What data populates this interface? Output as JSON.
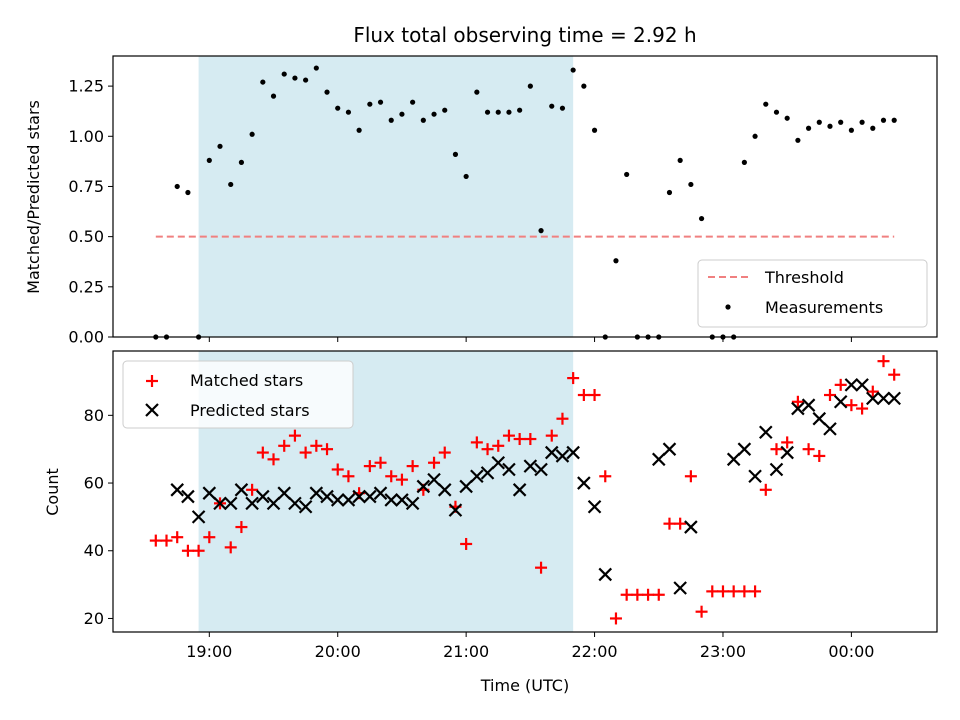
{
  "colors": {
    "threshold": "#f08080",
    "measurement": "#000000",
    "matched": "#ff0000",
    "predicted": "#000000",
    "span": "#add8e6"
  },
  "chart_data": [
    {
      "type": "scatter",
      "title": "Flux total observing time = 2.92 h",
      "xlabel": "",
      "ylabel": "Matched/Predicted stars",
      "ylim": [
        0,
        1.4
      ],
      "yticks": [
        0.0,
        0.25,
        0.5,
        0.75,
        1.0,
        1.25
      ],
      "ytick_labels": [
        "0.00",
        "0.25",
        "0.50",
        "0.75",
        "1.00",
        "1.25"
      ],
      "xlim": [
        "18:15",
        "00:40"
      ],
      "xticks": [
        "19:00",
        "20:00",
        "21:00",
        "22:00",
        "23:00",
        "00:00"
      ],
      "shaded_span": [
        "18:55",
        "21:50"
      ],
      "threshold": {
        "name": "Threshold",
        "value": 0.5,
        "x_start": "18:35",
        "x_end": "00:20"
      },
      "legend": {
        "location": "lower right",
        "entries": [
          "Threshold",
          "Measurements"
        ]
      },
      "series": [
        {
          "name": "Measurements",
          "x": [
            "18:35",
            "18:40",
            "18:45",
            "18:50",
            "18:55",
            "19:00",
            "19:05",
            "19:10",
            "19:15",
            "19:20",
            "19:25",
            "19:30",
            "19:35",
            "19:40",
            "19:45",
            "19:50",
            "19:55",
            "20:00",
            "20:05",
            "20:10",
            "20:15",
            "20:20",
            "20:25",
            "20:30",
            "20:35",
            "20:40",
            "20:45",
            "20:50",
            "20:55",
            "21:00",
            "21:05",
            "21:10",
            "21:15",
            "21:20",
            "21:25",
            "21:30",
            "21:35",
            "21:40",
            "21:45",
            "21:50",
            "21:55",
            "22:00",
            "22:05",
            "22:10",
            "22:15",
            "22:20",
            "22:25",
            "22:30",
            "22:35",
            "22:40",
            "22:45",
            "22:50",
            "22:55",
            "23:00",
            "23:05",
            "23:10",
            "23:15",
            "23:20",
            "23:25",
            "23:30",
            "23:35",
            "23:40",
            "23:45",
            "23:50",
            "23:55",
            "00:00",
            "00:05",
            "00:10",
            "00:15",
            "00:20"
          ],
          "y": [
            0.0,
            0.0,
            0.75,
            0.72,
            0.0,
            0.88,
            0.95,
            0.76,
            0.87,
            1.01,
            1.27,
            1.2,
            1.31,
            1.29,
            1.28,
            1.34,
            1.22,
            1.14,
            1.12,
            1.03,
            1.16,
            1.17,
            1.08,
            1.11,
            1.17,
            1.08,
            1.11,
            1.13,
            0.91,
            0.8,
            1.22,
            1.12,
            1.12,
            1.12,
            1.13,
            1.25,
            0.53,
            1.15,
            1.14,
            1.33,
            1.25,
            1.03,
            0.0,
            0.38,
            0.81,
            0.0,
            0.0,
            0.0,
            0.72,
            0.88,
            0.76,
            0.59,
            0.0,
            0.0,
            0.0,
            0.87,
            1.0,
            1.16,
            1.12,
            1.09,
            0.98,
            1.04,
            1.07,
            1.05,
            1.07,
            1.03,
            1.07,
            1.04,
            1.08,
            1.08
          ],
          "note_placeholder": ""
        }
      ]
    },
    {
      "type": "scatter",
      "title": "",
      "xlabel": "Time (UTC)",
      "ylabel": "Count",
      "ylim": [
        16,
        99
      ],
      "yticks": [
        20,
        40,
        60,
        80
      ],
      "ytick_labels": [
        "20",
        "40",
        "60",
        "80"
      ],
      "xlim": [
        "18:15",
        "00:40"
      ],
      "xticks": [
        "19:00",
        "20:00",
        "21:00",
        "22:00",
        "23:00",
        "00:00"
      ],
      "shaded_span": [
        "18:55",
        "21:50"
      ],
      "legend": {
        "location": "upper left",
        "entries": [
          "Matched stars",
          "Predicted stars"
        ]
      },
      "series": [
        {
          "name": "Matched stars",
          "marker": "plus",
          "x": [
            "18:35",
            "18:40",
            "18:45",
            "18:50",
            "18:55",
            "19:00",
            "19:05",
            "19:10",
            "19:15",
            "19:20",
            "19:25",
            "19:30",
            "19:35",
            "19:40",
            "19:45",
            "19:50",
            "19:55",
            "20:00",
            "20:05",
            "20:10",
            "20:15",
            "20:20",
            "20:25",
            "20:30",
            "20:35",
            "20:40",
            "20:45",
            "20:50",
            "20:55",
            "21:00",
            "21:05",
            "21:10",
            "21:15",
            "21:20",
            "21:25",
            "21:30",
            "21:35",
            "21:40",
            "21:45",
            "21:50",
            "21:55",
            "22:00",
            "22:05",
            "22:10",
            "22:15",
            "22:20",
            "22:25",
            "22:30",
            "22:35",
            "22:40",
            "22:45",
            "22:50",
            "22:55",
            "23:00",
            "23:05",
            "23:10",
            "23:15",
            "23:20",
            "23:25",
            "23:30",
            "23:35",
            "23:40",
            "23:45",
            "23:50",
            "23:55",
            "00:00",
            "00:05",
            "00:10",
            "00:15",
            "00:20"
          ],
          "y": [
            43,
            43,
            44,
            40,
            40,
            44,
            54,
            41,
            47,
            58,
            69,
            67,
            71,
            74,
            69,
            71,
            70,
            64,
            62,
            57,
            65,
            66,
            62,
            61,
            65,
            58,
            66,
            69,
            53,
            42,
            72,
            70,
            71,
            74,
            73,
            73,
            35,
            74,
            79,
            91,
            86,
            86,
            62,
            20,
            27,
            27,
            27,
            27,
            48,
            48,
            62,
            22,
            28,
            28,
            28,
            28,
            28,
            58,
            70,
            72,
            84,
            70,
            68,
            86,
            89,
            83,
            82,
            87,
            96,
            92
          ],
          "y_last_extra": 92
        },
        {
          "name": "Predicted stars",
          "marker": "x",
          "x": [
            "18:45",
            "18:50",
            "18:55",
            "19:00",
            "19:05",
            "19:10",
            "19:15",
            "19:20",
            "19:25",
            "19:30",
            "19:35",
            "19:40",
            "19:45",
            "19:50",
            "19:55",
            "20:00",
            "20:05",
            "20:10",
            "20:15",
            "20:20",
            "20:25",
            "20:30",
            "20:35",
            "20:40",
            "20:45",
            "20:50",
            "20:55",
            "21:00",
            "21:05",
            "21:10",
            "21:15",
            "21:20",
            "21:25",
            "21:30",
            "21:35",
            "21:40",
            "21:45",
            "21:50",
            "21:55",
            "22:00",
            "22:05",
            "22:30",
            "22:35",
            "22:40",
            "22:45",
            "23:05",
            "23:10",
            "23:15",
            "23:20",
            "23:25",
            "23:30",
            "23:35",
            "23:40",
            "23:45",
            "23:50",
            "23:55",
            "00:00",
            "00:05",
            "00:10",
            "00:15",
            "00:20"
          ],
          "y": [
            58,
            56,
            50,
            57,
            54,
            54,
            58,
            54,
            56,
            54,
            57,
            54,
            53,
            57,
            56,
            55,
            55,
            56,
            56,
            57,
            55,
            55,
            54,
            59,
            61,
            58,
            52,
            59,
            62,
            63,
            66,
            64,
            58,
            65,
            64,
            69,
            68,
            69,
            60,
            53,
            33,
            67,
            70,
            29,
            47,
            67,
            70,
            62,
            75,
            64,
            69,
            82,
            83,
            79,
            76,
            84,
            89,
            89,
            85,
            85,
            85
          ]
        }
      ]
    }
  ]
}
